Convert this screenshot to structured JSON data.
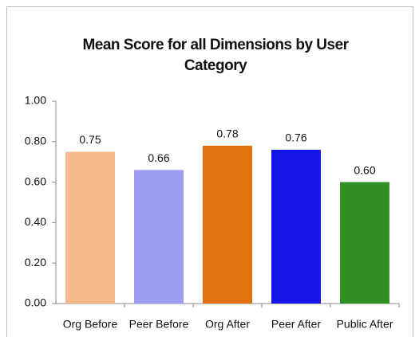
{
  "chart_data": {
    "type": "bar",
    "title": "Mean Score for all Dimensions by User Category",
    "categories": [
      "Org Before",
      "Peer Before",
      "Org After",
      "Peer After",
      "Public After"
    ],
    "values": [
      0.75,
      0.66,
      0.78,
      0.76,
      0.6
    ],
    "value_labels": [
      "0.75",
      "0.66",
      "0.78",
      "0.76",
      "0.60"
    ],
    "colors": [
      "#f5b98c",
      "#9c9cf2",
      "#e2710f",
      "#1414e6",
      "#2f8f24"
    ],
    "ylim": [
      0,
      1
    ],
    "yticks": [
      {
        "value": 0,
        "label": "0.00"
      },
      {
        "value": 0.2,
        "label": "0.20"
      },
      {
        "value": 0.4,
        "label": "0.40"
      },
      {
        "value": 0.6,
        "label": "0.60"
      },
      {
        "value": 0.8,
        "label": "0.80"
      },
      {
        "value": 1,
        "label": "1.00"
      }
    ],
    "grid": false
  }
}
